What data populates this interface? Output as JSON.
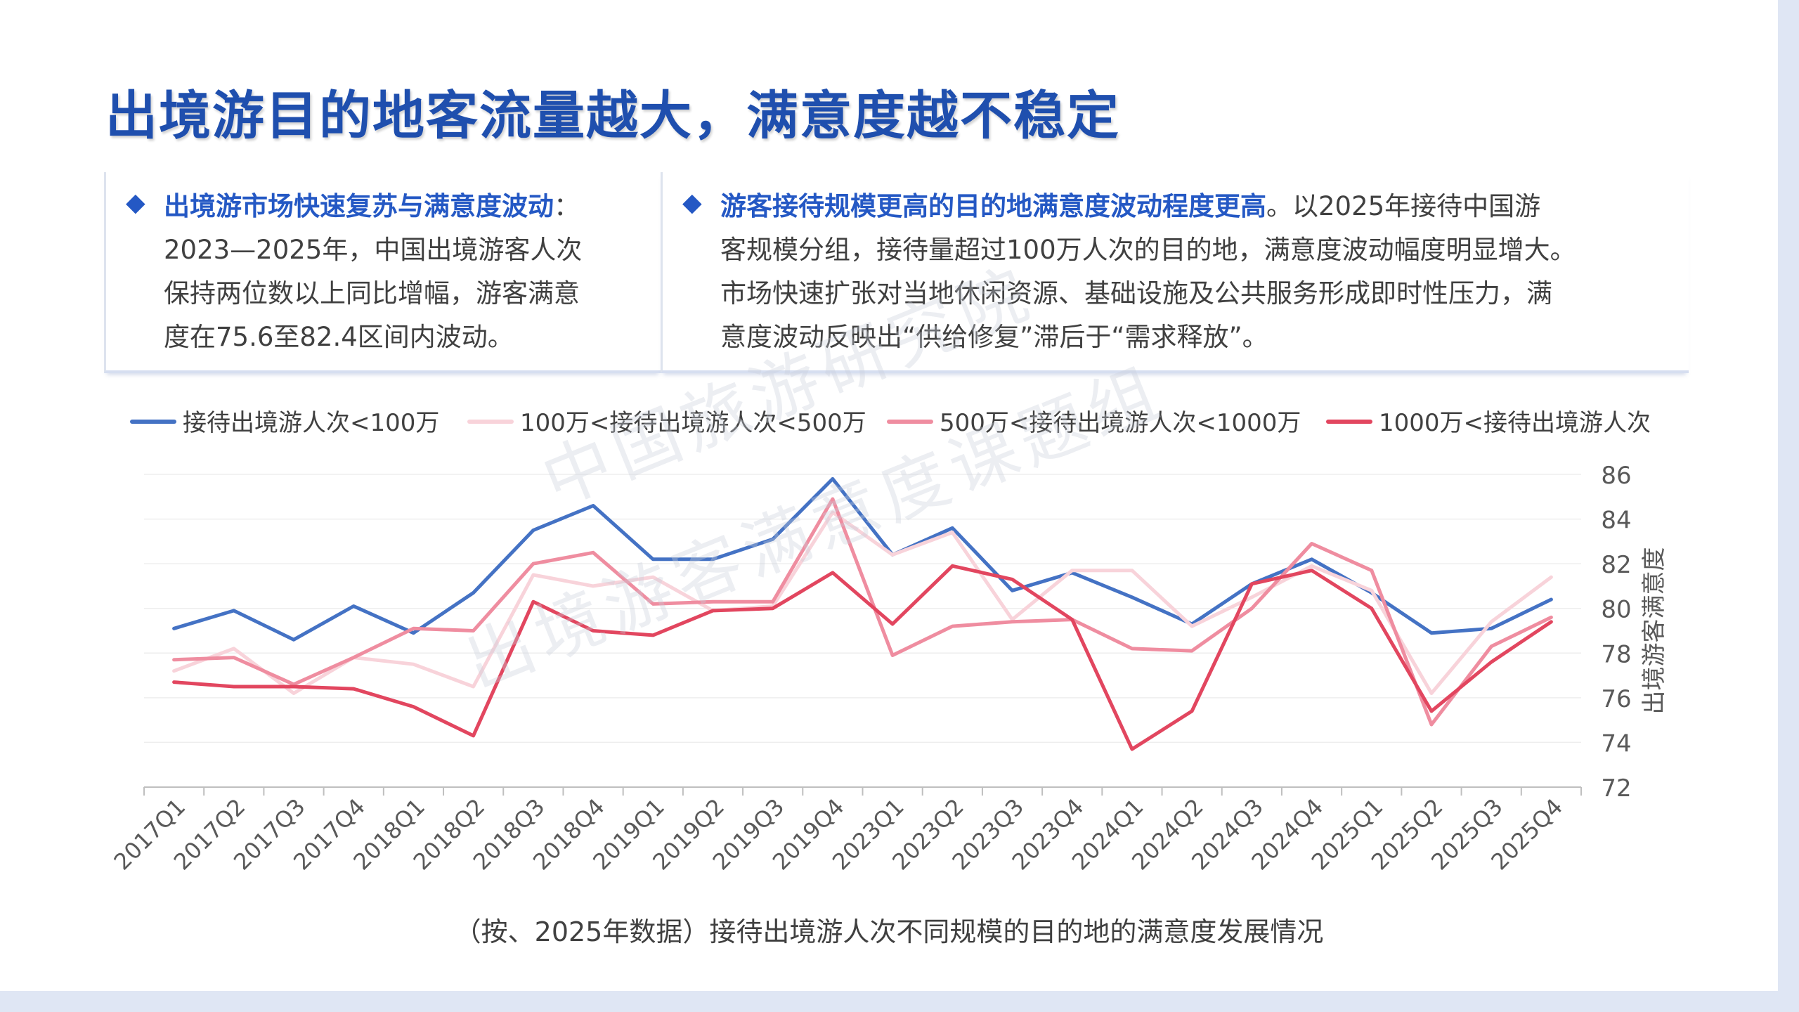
{
  "title": "出境游目的地客流量越大，满意度越不稳定",
  "panel_left": {
    "bullet_icon": "diamond-icon",
    "heading": "出境游市场快速复苏与满意度波动",
    "text": "：\n2023—2025年，中国出境游客人次\n保持两位数以上同比增幅，游客满意\n度在75.6至82.4区间内波动。"
  },
  "panel_right": {
    "bullet_icon": "diamond-icon",
    "heading": "游客接待规模更高的目的地满意度波动程度更高",
    "text": "。以2025年接待中国游\n客规模分组，接待量超过100万人次的目的地，满意度波动幅度明显增大。\n市场快速扩张对当地休闲资源、基础设施及公共服务形成即时性压力，满\n意度波动反映出“供给修复”滞后于“需求释放”。"
  },
  "watermark": [
    "中国旅游研究院",
    "出境游客满意度课题组"
  ],
  "caption": "（按、2025年数据）接待出境游人次不同规模的目的地的满意度发展情况",
  "chart_data": {
    "type": "line",
    "categories": [
      "2017Q1",
      "2017Q2",
      "2017Q3",
      "2017Q4",
      "2018Q1",
      "2018Q2",
      "2018Q3",
      "2018Q4",
      "2019Q1",
      "2019Q2",
      "2019Q3",
      "2019Q4",
      "2023Q1",
      "2023Q2",
      "2023Q3",
      "2023Q4",
      "2024Q1",
      "2024Q2",
      "2024Q3",
      "2024Q4",
      "2025Q1",
      "2025Q2",
      "2025Q3",
      "2025Q4"
    ],
    "ylabel": "出境游客满意度",
    "ylim": [
      72,
      86
    ],
    "yticks": [
      72,
      74,
      76,
      78,
      80,
      82,
      84,
      86
    ],
    "y_axis_side": "right",
    "legend_position": "top",
    "grid": true,
    "series": [
      {
        "name": "接待出境游人次<100万",
        "color": "#4472c4",
        "values": [
          79.1,
          79.9,
          78.6,
          80.1,
          78.9,
          80.7,
          83.5,
          84.6,
          82.2,
          82.2,
          83.1,
          85.8,
          82.4,
          83.6,
          80.8,
          81.6,
          80.5,
          79.3,
          81.1,
          82.2,
          80.7,
          78.9,
          79.1,
          80.4
        ]
      },
      {
        "name": "100万<接待出境游人次<500万",
        "color": "#f8d3da",
        "values": [
          77.2,
          78.2,
          76.2,
          77.8,
          77.5,
          76.5,
          81.5,
          81.0,
          81.4,
          79.9,
          80.1,
          84.3,
          82.4,
          83.4,
          79.5,
          81.7,
          81.7,
          79.2,
          80.5,
          81.9,
          80.8,
          76.2,
          79.4,
          81.4
        ]
      },
      {
        "name": "500万<接待出境游人次<1000万",
        "color": "#ef8da0",
        "values": [
          77.7,
          77.8,
          76.6,
          77.8,
          79.1,
          79.0,
          82.0,
          82.5,
          80.2,
          80.3,
          80.3,
          84.9,
          77.9,
          79.2,
          79.4,
          79.5,
          78.2,
          78.1,
          80.0,
          82.9,
          81.7,
          74.8,
          78.3,
          79.6
        ]
      },
      {
        "name": "1000万<接待出境游人次",
        "color": "#e2465f",
        "values": [
          76.7,
          76.5,
          76.5,
          76.4,
          75.6,
          74.3,
          80.3,
          79.0,
          78.8,
          79.9,
          80.0,
          81.6,
          79.3,
          81.9,
          81.3,
          79.5,
          73.7,
          75.4,
          81.1,
          81.7,
          80.0,
          75.4,
          77.6,
          79.4
        ]
      }
    ]
  }
}
